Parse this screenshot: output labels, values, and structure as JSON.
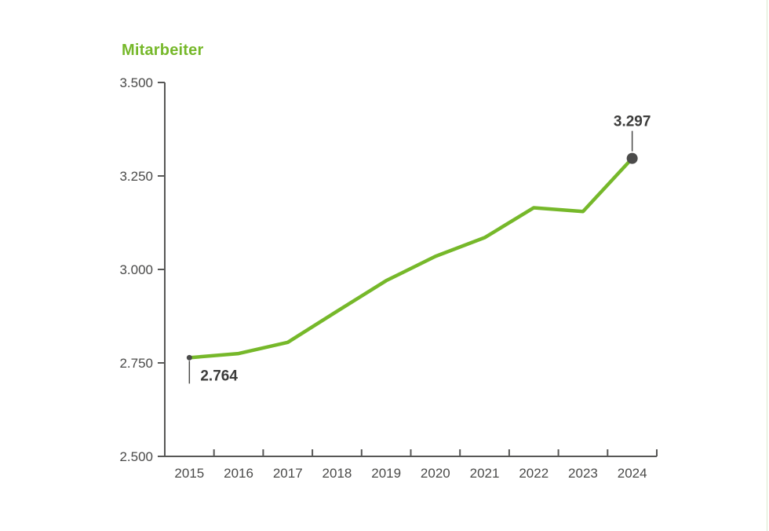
{
  "chart_data": {
    "type": "line",
    "title": "Mitarbeiter",
    "categories": [
      "2015",
      "2016",
      "2017",
      "2018",
      "2019",
      "2020",
      "2021",
      "2022",
      "2023",
      "2024"
    ],
    "series": [
      {
        "name": "Mitarbeiter",
        "values": [
          2764,
          2775,
          2805,
          2888,
          2970,
          3035,
          3085,
          3165,
          3155,
          3297
        ]
      }
    ],
    "xlabel": "",
    "ylabel": "",
    "ylim": [
      2500,
      3500
    ],
    "grid": false,
    "legend_position": "none",
    "yticks": [
      {
        "value": 3500,
        "label": "3.500"
      },
      {
        "value": 3250,
        "label": "3.250"
      },
      {
        "value": 3000,
        "label": "3.000"
      },
      {
        "value": 2750,
        "label": "2.750"
      },
      {
        "value": 2500,
        "label": "2.500"
      }
    ],
    "annotations": [
      {
        "category": "2015",
        "value": 2764,
        "label": "2.764",
        "position": "below"
      },
      {
        "category": "2024",
        "value": 3297,
        "label": "3.297",
        "position": "above"
      }
    ],
    "colors": {
      "line": "#76b82a",
      "title": "#76b82a",
      "marker": "#4b4b4a",
      "axis": "#575756",
      "tick_text": "#4a4a49",
      "annotation_text": "#3c3c3b",
      "background": "#ffffff",
      "edge_line": "#d9e9cd"
    }
  }
}
